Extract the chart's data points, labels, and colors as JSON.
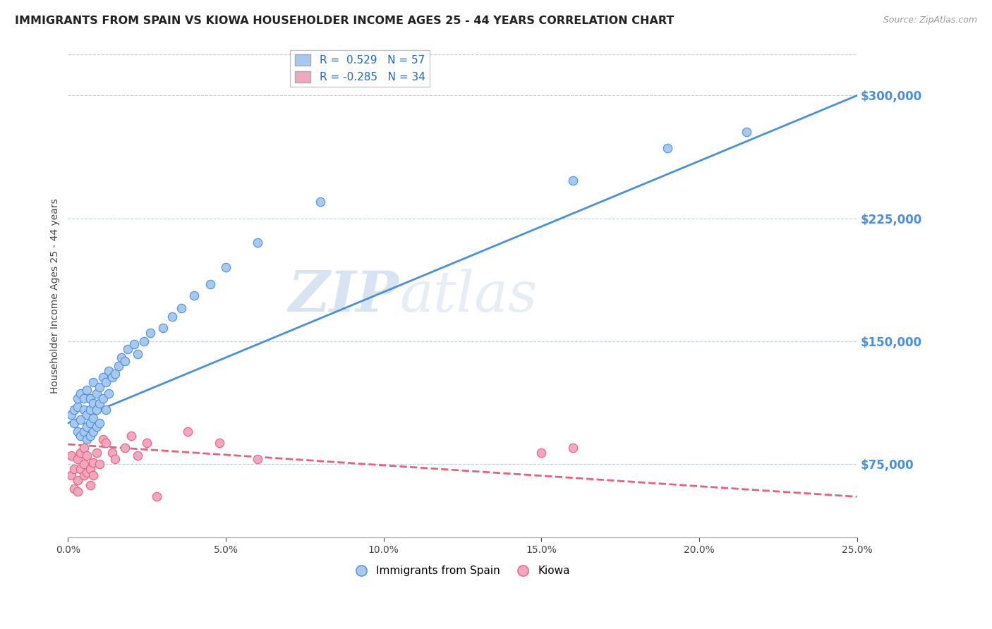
{
  "title": "IMMIGRANTS FROM SPAIN VS KIOWA HOUSEHOLDER INCOME AGES 25 - 44 YEARS CORRELATION CHART",
  "source": "Source: ZipAtlas.com",
  "ylabel": "Householder Income Ages 25 - 44 years",
  "watermark_zip": "ZIP",
  "watermark_atlas": "atlas",
  "xlim": [
    0.0,
    0.25
  ],
  "ylim": [
    30000,
    325000
  ],
  "xticks": [
    0.0,
    0.05,
    0.1,
    0.15,
    0.2,
    0.25
  ],
  "xtick_labels": [
    "0.0%",
    "5.0%",
    "10.0%",
    "15.0%",
    "20.0%",
    "25.0%"
  ],
  "yticks": [
    75000,
    150000,
    225000,
    300000
  ],
  "ytick_labels": [
    "$75,000",
    "$150,000",
    "$225,000",
    "$300,000"
  ],
  "blue_R": 0.529,
  "blue_N": 57,
  "pink_R": -0.285,
  "pink_N": 34,
  "blue_color": "#a8c8f0",
  "pink_color": "#f0a8c0",
  "blue_line_color": "#4a90d9",
  "pink_line_color": "#e8607a",
  "legend_label_blue": "Immigrants from Spain",
  "legend_label_pink": "Kiowa",
  "blue_line_x0": 0.0,
  "blue_line_y0": 100000,
  "blue_line_x1": 0.25,
  "blue_line_y1": 300000,
  "pink_line_x0": 0.0,
  "pink_line_y0": 87000,
  "pink_line_x1": 0.25,
  "pink_line_y1": 55000,
  "blue_scatter_x": [
    0.001,
    0.002,
    0.002,
    0.003,
    0.003,
    0.003,
    0.004,
    0.004,
    0.004,
    0.005,
    0.005,
    0.005,
    0.006,
    0.006,
    0.006,
    0.006,
    0.007,
    0.007,
    0.007,
    0.007,
    0.008,
    0.008,
    0.008,
    0.008,
    0.009,
    0.009,
    0.009,
    0.01,
    0.01,
    0.01,
    0.011,
    0.011,
    0.012,
    0.012,
    0.013,
    0.013,
    0.014,
    0.015,
    0.016,
    0.017,
    0.018,
    0.019,
    0.021,
    0.022,
    0.024,
    0.026,
    0.03,
    0.033,
    0.036,
    0.04,
    0.045,
    0.05,
    0.06,
    0.08,
    0.16,
    0.19,
    0.215
  ],
  "blue_scatter_y": [
    105000,
    100000,
    108000,
    95000,
    110000,
    115000,
    92000,
    102000,
    118000,
    95000,
    108000,
    115000,
    90000,
    98000,
    105000,
    120000,
    92000,
    100000,
    108000,
    115000,
    95000,
    103000,
    112000,
    125000,
    98000,
    108000,
    118000,
    100000,
    112000,
    122000,
    115000,
    128000,
    108000,
    125000,
    118000,
    132000,
    128000,
    130000,
    135000,
    140000,
    138000,
    145000,
    148000,
    142000,
    150000,
    155000,
    158000,
    165000,
    170000,
    178000,
    185000,
    195000,
    210000,
    235000,
    248000,
    268000,
    278000
  ],
  "pink_scatter_x": [
    0.001,
    0.001,
    0.002,
    0.002,
    0.003,
    0.003,
    0.003,
    0.004,
    0.004,
    0.005,
    0.005,
    0.005,
    0.006,
    0.006,
    0.007,
    0.007,
    0.008,
    0.008,
    0.009,
    0.01,
    0.011,
    0.012,
    0.014,
    0.015,
    0.018,
    0.02,
    0.022,
    0.025,
    0.028,
    0.038,
    0.048,
    0.06,
    0.15,
    0.16
  ],
  "pink_scatter_y": [
    80000,
    68000,
    72000,
    60000,
    78000,
    65000,
    58000,
    72000,
    82000,
    68000,
    75000,
    85000,
    70000,
    80000,
    72000,
    62000,
    76000,
    68000,
    82000,
    75000,
    90000,
    88000,
    82000,
    78000,
    85000,
    92000,
    80000,
    88000,
    55000,
    95000,
    88000,
    78000,
    82000,
    85000
  ]
}
